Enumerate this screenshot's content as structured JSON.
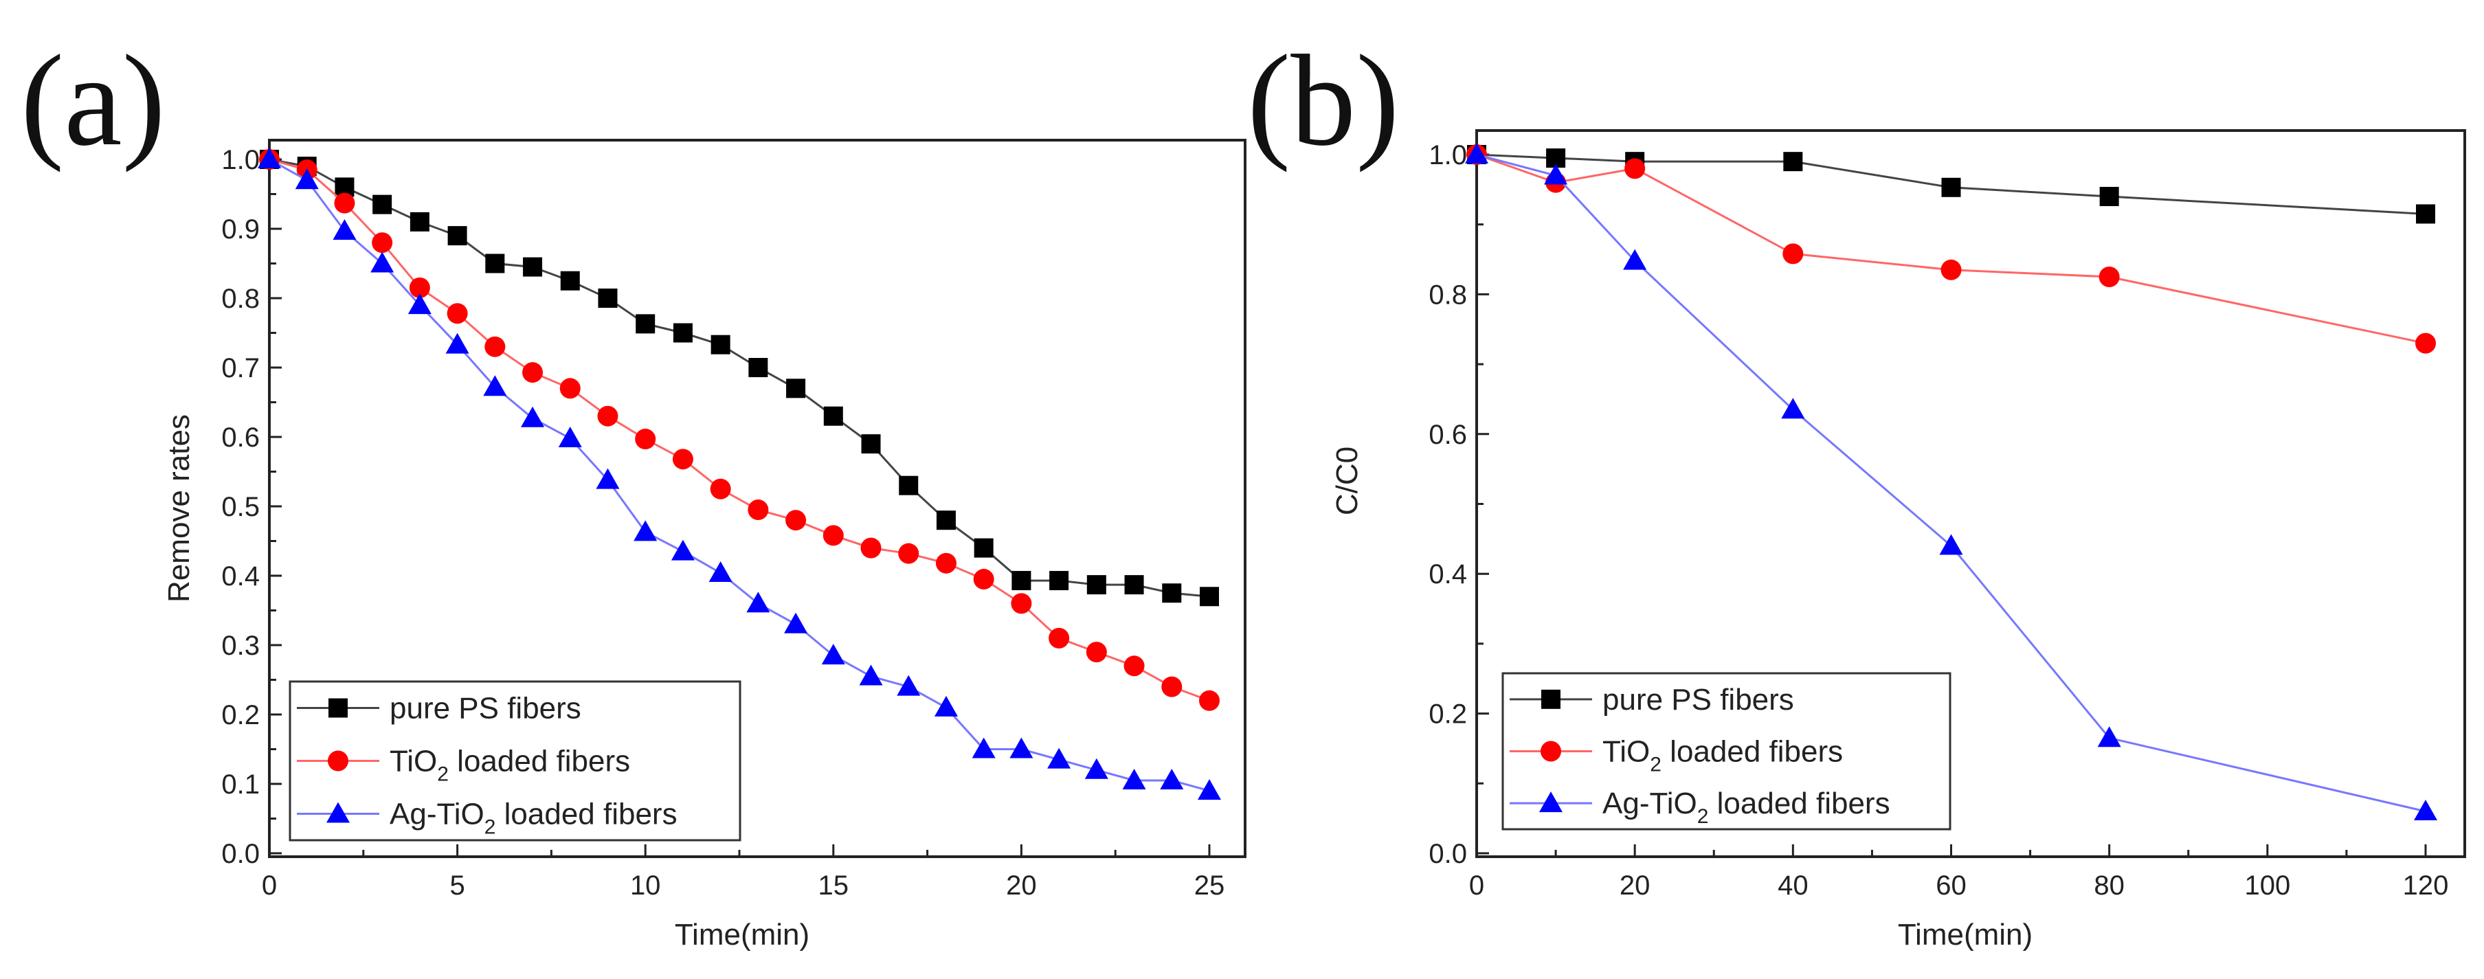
{
  "chart_data": [
    {
      "type": "line",
      "panel_label": "(a)",
      "xlabel": "Time(min)",
      "ylabel": "Remove rates",
      "xlim": [
        0,
        25.8
      ],
      "ylim": [
        0,
        1.05
      ],
      "xticks": [
        0,
        5,
        10,
        15,
        20,
        25
      ],
      "xtick_labels": [
        "0",
        "5",
        "10",
        "15",
        "20",
        "25"
      ],
      "xminor": 2.5,
      "yticks": [
        0,
        0.1,
        0.2,
        0.3,
        0.4,
        0.5,
        0.6,
        0.7,
        0.8,
        0.9,
        1.0
      ],
      "ytick_labels": [
        "0.0",
        "0.1",
        "0.2",
        "0.3",
        "0.4",
        "0.5",
        "0.6",
        "0.7",
        "0.8",
        "0.9",
        "1.0"
      ],
      "yminor": 0.05,
      "legend_position": "bottom-left",
      "x": [
        0,
        1,
        2,
        3,
        4,
        5,
        6,
        7,
        8,
        9,
        10,
        11,
        12,
        13,
        14,
        15,
        16,
        17,
        18,
        19,
        20,
        21,
        22,
        23,
        24,
        25
      ],
      "series": [
        {
          "name": "pure PS fibers",
          "name_parts": {
            "pre": "pure PS fibers",
            "sub": "",
            "post": ""
          },
          "color": "#000000",
          "line_color": "#444444",
          "marker": "square",
          "values": [
            1.0,
            0.99,
            0.96,
            0.935,
            0.91,
            0.89,
            0.85,
            0.845,
            0.825,
            0.8,
            0.763,
            0.75,
            0.733,
            0.7,
            0.67,
            0.63,
            0.59,
            0.53,
            0.48,
            0.44,
            0.393,
            0.393,
            0.387,
            0.387,
            0.375,
            0.37
          ]
        },
        {
          "name": "TiO2 loaded fibers",
          "name_parts": {
            "pre": "TiO",
            "sub": "2",
            "post": " loaded fibers"
          },
          "color": "#ff0000",
          "line_color": "#ff6666",
          "marker": "circle",
          "values": [
            1.0,
            0.985,
            0.937,
            0.88,
            0.815,
            0.778,
            0.73,
            0.693,
            0.67,
            0.63,
            0.597,
            0.568,
            0.525,
            0.495,
            0.48,
            0.458,
            0.44,
            0.432,
            0.418,
            0.395,
            0.36,
            0.31,
            0.29,
            0.27,
            0.24,
            0.22
          ]
        },
        {
          "name": "Ag-TiO2 loaded fibers",
          "name_parts": {
            "pre": "Ag-TiO",
            "sub": "2",
            "post": " loaded fibers"
          },
          "color": "#0000ff",
          "line_color": "#7777ff",
          "marker": "triangle",
          "values": [
            1.0,
            0.97,
            0.897,
            0.85,
            0.79,
            0.733,
            0.672,
            0.627,
            0.598,
            0.538,
            0.463,
            0.435,
            0.404,
            0.36,
            0.33,
            0.285,
            0.255,
            0.24,
            0.21,
            0.15,
            0.15,
            0.135,
            0.12,
            0.105,
            0.105,
            0.09
          ]
        }
      ]
    },
    {
      "type": "line",
      "panel_label": "(b)",
      "xlabel": "Time(min)",
      "ylabel": "C/C0",
      "ylabel_parts": {
        "pre": "C/C",
        "sub": "0"
      },
      "xlim": [
        0,
        124
      ],
      "ylim": [
        0,
        1.05
      ],
      "xticks": [
        0,
        20,
        40,
        60,
        80,
        100,
        120
      ],
      "xtick_labels": [
        "0",
        "20",
        "40",
        "60",
        "80",
        "100",
        "120"
      ],
      "xminor": 10,
      "yticks": [
        0,
        0.2,
        0.4,
        0.6,
        0.8,
        1.0
      ],
      "ytick_labels": [
        "0.0",
        "0.2",
        "0.4",
        "0.6",
        "0.8",
        "1.0"
      ],
      "yminor": 0.1,
      "legend_position": "bottom-left",
      "x": [
        0,
        10,
        20,
        40,
        60,
        80,
        120
      ],
      "series": [
        {
          "name": "pure PS fibers",
          "name_parts": {
            "pre": "pure PS fibers",
            "sub": "",
            "post": ""
          },
          "color": "#000000",
          "line_color": "#444444",
          "marker": "square",
          "values": [
            1.0,
            0.995,
            0.99,
            0.99,
            0.953,
            0.94,
            0.915
          ]
        },
        {
          "name": "TiO2 loaded fibers",
          "name_parts": {
            "pre": "TiO",
            "sub": "2",
            "post": " loaded fibers"
          },
          "color": "#ff0000",
          "line_color": "#ff6666",
          "marker": "circle",
          "values": [
            1.0,
            0.96,
            0.98,
            0.858,
            0.835,
            0.825,
            0.73
          ]
        },
        {
          "name": "Ag-TiO2 loaded fibers",
          "name_parts": {
            "pre": "Ag-TiO",
            "sub": "2",
            "post": " loaded fibers"
          },
          "color": "#0000ff",
          "line_color": "#7777ff",
          "marker": "triangle",
          "values": [
            1.0,
            0.97,
            0.848,
            0.635,
            0.44,
            0.165,
            0.06
          ]
        }
      ]
    }
  ]
}
